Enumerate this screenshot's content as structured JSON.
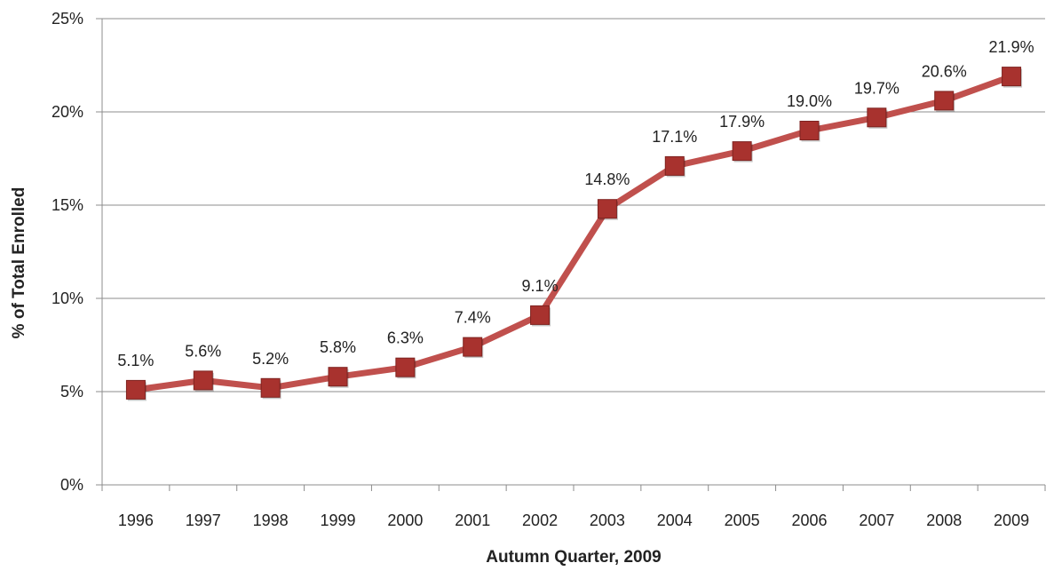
{
  "chart_data": {
    "type": "line",
    "title": "",
    "xlabel": "Autumn Quarter, 2009",
    "ylabel": "% of Total Enrolled",
    "ylim": [
      0,
      25
    ],
    "y_ticks": [
      "0%",
      "5%",
      "10%",
      "15%",
      "20%",
      "25%"
    ],
    "y_tick_values": [
      0,
      5,
      10,
      15,
      20,
      25
    ],
    "grid": true,
    "legend": "none",
    "categories": [
      "1996",
      "1997",
      "1998",
      "1999",
      "2000",
      "2001",
      "2002",
      "2003",
      "2004",
      "2005",
      "2006",
      "2007",
      "2008",
      "2009"
    ],
    "series": [
      {
        "values": [
          5.1,
          5.6,
          5.2,
          5.8,
          6.3,
          7.4,
          9.1,
          14.8,
          17.1,
          17.9,
          19.0,
          19.7,
          20.6,
          21.9
        ],
        "labels": [
          "5.1%",
          "5.6%",
          "5.2%",
          "5.8%",
          "6.3%",
          "7.4%",
          "9.1%",
          "14.8%",
          "17.1%",
          "17.9%",
          "19.0%",
          "19.7%",
          "20.6%",
          "21.9%"
        ],
        "color": "#c0504d",
        "marker": "square"
      }
    ]
  }
}
